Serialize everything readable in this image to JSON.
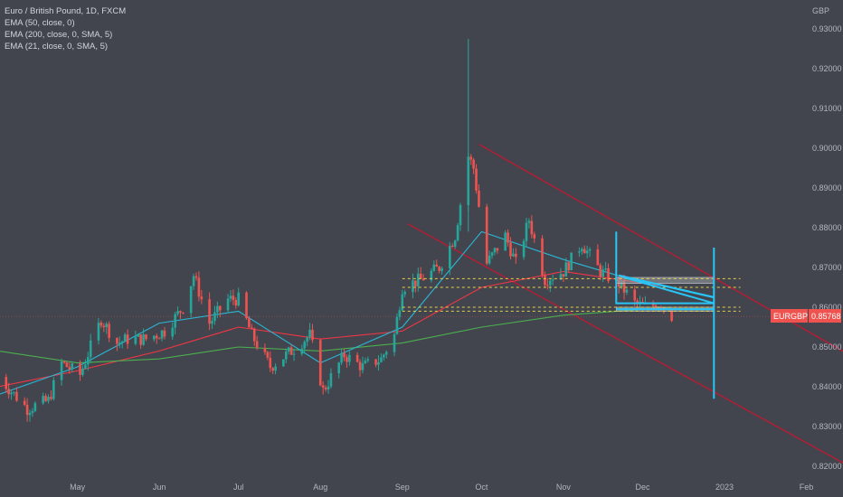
{
  "legend": {
    "title": "Euro / British Pound, 1D, FXCM",
    "ind1": "EMA (50, close, 0)",
    "ind2": "EMA (200, close, 0, SMA, 5)",
    "ind3": "EMA (21, close, 0, SMA, 5)"
  },
  "price_label": {
    "symbol": "EURGBP",
    "value": "0.85768"
  },
  "colors": {
    "background": "#42454d",
    "up": "#26a69a",
    "down": "#ef5350",
    "ema50": "#f23645",
    "ema200": "#4caf50",
    "ema21": "#2ab7d6",
    "channel": "#b71c34",
    "levels": "#e6d04a",
    "drawing": "#29c5f6",
    "zone": "#9aa0a6"
  },
  "chart_data": {
    "type": "candlestick",
    "symbol": "EURGBP",
    "currency": "GBP",
    "ylim": [
      0.8167,
      0.9337
    ],
    "y_ticks": [
      "0.93000",
      "0.92000",
      "0.91000",
      "0.90000",
      "0.89000",
      "0.88000",
      "0.87000",
      "0.86000",
      "0.85000",
      "0.84000",
      "0.83000",
      "0.82000"
    ],
    "x_ticks": [
      "May",
      "Jun",
      "Jul",
      "Aug",
      "Sep",
      "Oct",
      "Nov",
      "Dec",
      "2023",
      "Feb"
    ],
    "last_price": 0.85768,
    "close_path": [
      {
        "date": "2022-04-01",
        "close": 0.8425
      },
      {
        "date": "2022-04-12",
        "close": 0.8345
      },
      {
        "date": "2022-04-20",
        "close": 0.8365
      },
      {
        "date": "2022-04-25",
        "close": 0.846
      },
      {
        "date": "2022-05-02",
        "close": 0.843
      },
      {
        "date": "2022-05-10",
        "close": 0.857
      },
      {
        "date": "2022-05-16",
        "close": 0.851
      },
      {
        "date": "2022-05-20",
        "close": 0.852
      },
      {
        "date": "2022-05-27",
        "close": 0.852
      },
      {
        "date": "2022-06-03",
        "close": 0.854
      },
      {
        "date": "2022-06-10",
        "close": 0.86
      },
      {
        "date": "2022-06-14",
        "close": 0.868
      },
      {
        "date": "2022-06-20",
        "close": 0.856
      },
      {
        "date": "2022-06-27",
        "close": 0.862
      },
      {
        "date": "2022-07-01",
        "close": 0.862
      },
      {
        "date": "2022-07-06",
        "close": 0.853
      },
      {
        "date": "2022-07-13",
        "close": 0.845
      },
      {
        "date": "2022-07-21",
        "close": 0.849
      },
      {
        "date": "2022-07-28",
        "close": 0.853
      },
      {
        "date": "2022-08-02",
        "close": 0.839
      },
      {
        "date": "2022-08-10",
        "close": 0.848
      },
      {
        "date": "2022-08-17",
        "close": 0.845
      },
      {
        "date": "2022-08-24",
        "close": 0.847
      },
      {
        "date": "2022-08-29",
        "close": 0.853
      },
      {
        "date": "2022-09-01",
        "close": 0.865
      },
      {
        "date": "2022-09-08",
        "close": 0.867
      },
      {
        "date": "2022-09-15",
        "close": 0.87
      },
      {
        "date": "2022-09-21",
        "close": 0.878
      },
      {
        "date": "2022-09-26",
        "close": 0.898
      },
      {
        "date": "2022-09-28",
        "close": 0.895
      },
      {
        "date": "2022-10-03",
        "close": 0.871
      },
      {
        "date": "2022-10-10",
        "close": 0.878
      },
      {
        "date": "2022-10-14",
        "close": 0.871
      },
      {
        "date": "2022-10-19",
        "close": 0.882
      },
      {
        "date": "2022-10-25",
        "close": 0.867
      },
      {
        "date": "2022-11-01",
        "close": 0.869
      },
      {
        "date": "2022-11-08",
        "close": 0.876
      },
      {
        "date": "2022-11-15",
        "close": 0.869
      },
      {
        "date": "2022-11-22",
        "close": 0.866
      },
      {
        "date": "2022-11-28",
        "close": 0.861
      },
      {
        "date": "2022-12-02",
        "close": 0.86
      },
      {
        "date": "2022-12-08",
        "close": 0.861
      },
      {
        "date": "2022-12-12",
        "close": 0.8577
      }
    ],
    "indicators": [
      {
        "name": "EMA (50, close, 0)",
        "points": [
          {
            "date": "2022-04-01",
            "value": 0.84
          },
          {
            "date": "2022-05-01",
            "value": 0.844
          },
          {
            "date": "2022-06-01",
            "value": 0.849
          },
          {
            "date": "2022-07-01",
            "value": 0.855
          },
          {
            "date": "2022-08-01",
            "value": 0.852
          },
          {
            "date": "2022-09-01",
            "value": 0.854
          },
          {
            "date": "2022-10-01",
            "value": 0.865
          },
          {
            "date": "2022-11-01",
            "value": 0.869
          },
          {
            "date": "2022-12-12",
            "value": 0.865
          }
        ]
      },
      {
        "name": "EMA (200, close, 0, SMA, 5)",
        "points": [
          {
            "date": "2022-04-01",
            "value": 0.849
          },
          {
            "date": "2022-05-01",
            "value": 0.846
          },
          {
            "date": "2022-06-01",
            "value": 0.847
          },
          {
            "date": "2022-07-01",
            "value": 0.85
          },
          {
            "date": "2022-08-01",
            "value": 0.849
          },
          {
            "date": "2022-09-01",
            "value": 0.851
          },
          {
            "date": "2022-10-01",
            "value": 0.855
          },
          {
            "date": "2022-11-01",
            "value": 0.858
          },
          {
            "date": "2022-12-12",
            "value": 0.86
          }
        ]
      },
      {
        "name": "EMA (21, close, 0, SMA, 5)",
        "points": [
          {
            "date": "2022-04-01",
            "value": 0.838
          },
          {
            "date": "2022-05-01",
            "value": 0.845
          },
          {
            "date": "2022-06-01",
            "value": 0.856
          },
          {
            "date": "2022-07-01",
            "value": 0.859
          },
          {
            "date": "2022-08-01",
            "value": 0.846
          },
          {
            "date": "2022-09-01",
            "value": 0.855
          },
          {
            "date": "2022-10-01",
            "value": 0.879
          },
          {
            "date": "2022-11-01",
            "value": 0.872
          },
          {
            "date": "2022-12-12",
            "value": 0.864
          }
        ]
      }
    ],
    "annotations": {
      "channel_upper": [
        {
          "date": "2022-09-30",
          "price": 0.901
        },
        {
          "date": "2023-02-20",
          "price": 0.847
        }
      ],
      "channel_lower": [
        {
          "date": "2022-09-03",
          "price": 0.881
        },
        {
          "date": "2023-02-20",
          "price": 0.819
        }
      ],
      "dashed_levels": [
        0.8672,
        0.865,
        0.86,
        0.859
      ],
      "zones": [
        {
          "from": 0.866,
          "to": 0.8675
        },
        {
          "from": 0.859,
          "to": 0.86
        }
      ],
      "projection": [
        {
          "date": "2022-11-21",
          "price": 0.879
        },
        {
          "date": "2022-11-21",
          "price": 0.861
        },
        {
          "date": "2022-12-28",
          "price": 0.861
        },
        {
          "date": "2022-12-28",
          "price": 0.837
        },
        {
          "date": "2022-12-28",
          "price": 0.875
        },
        {
          "date": "2022-12-28",
          "price": 0.861
        },
        {
          "date": "2022-11-24",
          "price": 0.8675
        },
        {
          "date": "2022-12-28",
          "price": 0.861
        }
      ],
      "triangle_top": [
        {
          "date": "2022-11-22",
          "price": 0.868
        },
        {
          "date": "2022-12-28",
          "price": 0.8625
        }
      ],
      "horizontal_line": 0.8595
    }
  }
}
